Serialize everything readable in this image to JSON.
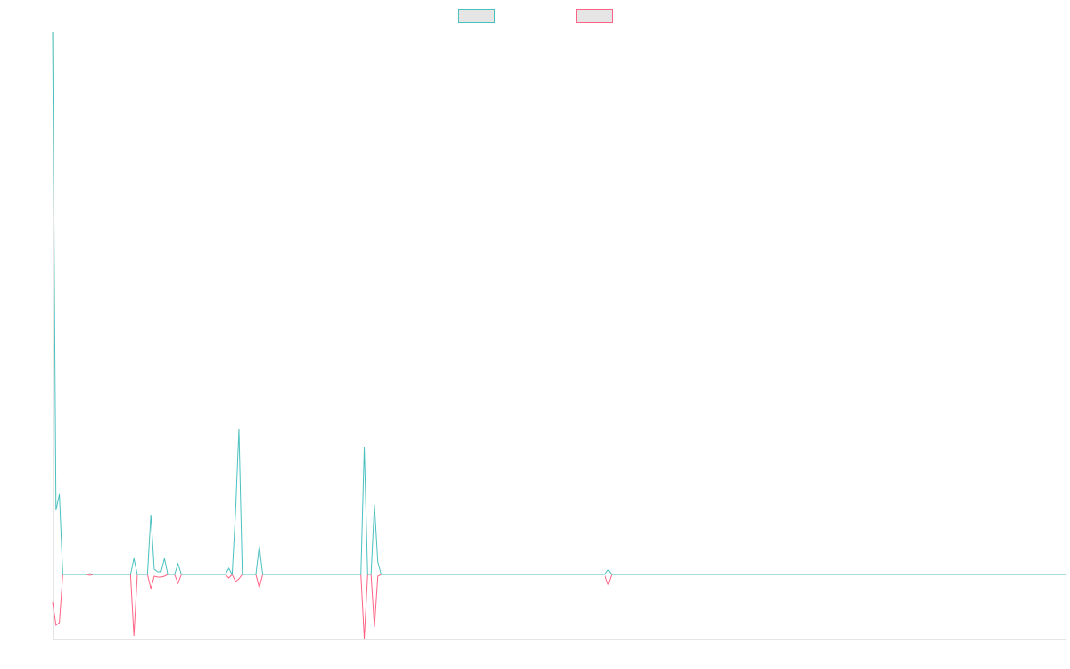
{
  "chart_data": {
    "type": "line",
    "ylim": [
      -72,
      608
    ],
    "categories": [
      null,
      null,
      null,
      null,
      null,
      null,
      null,
      null,
      null,
      null,
      null,
      null,
      null,
      null,
      null,
      null,
      null,
      null,
      null,
      null,
      null,
      null,
      null,
      null,
      null,
      null,
      null,
      null,
      null,
      null,
      null,
      null,
      null,
      null,
      null,
      null,
      null,
      null,
      null,
      null,
      null,
      null,
      null,
      null,
      null,
      null,
      null,
      null,
      null,
      null,
      null,
      null,
      null,
      null,
      null,
      null,
      null,
      null,
      null,
      null,
      null,
      null,
      null,
      null,
      null,
      null,
      null,
      null,
      null,
      null,
      null,
      null,
      null,
      null,
      null,
      null,
      null,
      null,
      null,
      null,
      null,
      null,
      null,
      null,
      null,
      null,
      null,
      null,
      null,
      null,
      null,
      null,
      null,
      null,
      null,
      null,
      null,
      null,
      null,
      null,
      null,
      null,
      null,
      null,
      null,
      null,
      null,
      null,
      null,
      null,
      null,
      null,
      null,
      null,
      null,
      null,
      null,
      null,
      null,
      null,
      null,
      null,
      null,
      null,
      null,
      null,
      null,
      null,
      null,
      null,
      null,
      null,
      null,
      null,
      null,
      null,
      null,
      null,
      null,
      null,
      null,
      null,
      null,
      null,
      null,
      null,
      null,
      null,
      null,
      null,
      null,
      null,
      null,
      null,
      null,
      null,
      null,
      null,
      null,
      null,
      null,
      null,
      null,
      null,
      null,
      null,
      null,
      null,
      null,
      null,
      null,
      null,
      null,
      null,
      null,
      null,
      null,
      null,
      null,
      null,
      null,
      null,
      null,
      null,
      null,
      null,
      null,
      null,
      null,
      null,
      null,
      null,
      null,
      null,
      null,
      null,
      null,
      null,
      null,
      null,
      null,
      null,
      null,
      null,
      null,
      null,
      null,
      null,
      null,
      null,
      null,
      null,
      null,
      null,
      null,
      null,
      null,
      null,
      null,
      null,
      null,
      null,
      null,
      null,
      null,
      null,
      null,
      null,
      null,
      null,
      null,
      null,
      null,
      null,
      null,
      null,
      null,
      null,
      null,
      null,
      null,
      null,
      null,
      null,
      null,
      null,
      null,
      null,
      null,
      null,
      null,
      null,
      null,
      null,
      null,
      null,
      null,
      null,
      null,
      null,
      null,
      null,
      null,
      null,
      null,
      null,
      null,
      null,
      null,
      null,
      null,
      null,
      null,
      null,
      null,
      null,
      null,
      null,
      null,
      null,
      null,
      null,
      null,
      null,
      null,
      null,
      null,
      null,
      null,
      null,
      null,
      null,
      null,
      null,
      null,
      null,
      null,
      null,
      null,
      null
    ],
    "series": [
      {
        "color": "#4bc0c0",
        "values": [
          608,
          72,
          90,
          0,
          0,
          0,
          0,
          0,
          0,
          0,
          0,
          1,
          0,
          0,
          0,
          0,
          0,
          0,
          0,
          0,
          0,
          0,
          0,
          0,
          18,
          0,
          0,
          0,
          0,
          67,
          6,
          3,
          3,
          18,
          0,
          0,
          0,
          12,
          0,
          0,
          0,
          0,
          0,
          0,
          0,
          0,
          0,
          0,
          0,
          0,
          0,
          0,
          7,
          0,
          70,
          163,
          0,
          0,
          0,
          0,
          0,
          32,
          0,
          0,
          0,
          0,
          0,
          0,
          0,
          0,
          0,
          0,
          0,
          0,
          0,
          0,
          0,
          0,
          0,
          0,
          0,
          0,
          0,
          0,
          0,
          0,
          0,
          0,
          0,
          0,
          0,
          0,
          143,
          0,
          0,
          78,
          14,
          0,
          0,
          0,
          0,
          0,
          0,
          0,
          0,
          0,
          0,
          0,
          0,
          0,
          0,
          0,
          0,
          0,
          0,
          0,
          0,
          0,
          0,
          0,
          0,
          0,
          0,
          0,
          0,
          0,
          0,
          0,
          0,
          0,
          0,
          0,
          0,
          0,
          0,
          0,
          0,
          0,
          0,
          0,
          0,
          0,
          0,
          0,
          0,
          0,
          0,
          0,
          0,
          0,
          0,
          0,
          0,
          0,
          0,
          0,
          0,
          0,
          0,
          0,
          0,
          0,
          0,
          0,
          5,
          0,
          0,
          0,
          0,
          0,
          0,
          0,
          0,
          0,
          0,
          0,
          0,
          0,
          0,
          0,
          0,
          0,
          0,
          0,
          0,
          0,
          0,
          0,
          0,
          0,
          0,
          0,
          0,
          0,
          0,
          0,
          0,
          0,
          0,
          0,
          0,
          0,
          0,
          0,
          0,
          0,
          0,
          0,
          0,
          0,
          0,
          0,
          0,
          0,
          0,
          0,
          0,
          0,
          0,
          0,
          0,
          0,
          0,
          0,
          0,
          0,
          0,
          0,
          0,
          0,
          0,
          0,
          0,
          0,
          0,
          0,
          0,
          0,
          0,
          0,
          0,
          0,
          0,
          0,
          0,
          0,
          0,
          0,
          0,
          0,
          0,
          0,
          0,
          0,
          0,
          0,
          0,
          0,
          0,
          0,
          0,
          0,
          0,
          0,
          0,
          0,
          0,
          0,
          0,
          0,
          0,
          0,
          0,
          0,
          0,
          0,
          0,
          0,
          0,
          0,
          0,
          0,
          0,
          0,
          0,
          0,
          0,
          0,
          0,
          0,
          0,
          0,
          0,
          0,
          0,
          0,
          0,
          0,
          0,
          0
        ]
      },
      {
        "color": "#ff6384",
        "values": [
          -31,
          -57,
          -54,
          0,
          0,
          0,
          0,
          0,
          0,
          0,
          0,
          -1,
          0,
          0,
          0,
          0,
          0,
          0,
          0,
          0,
          0,
          0,
          0,
          0,
          -69,
          0,
          0,
          0,
          0,
          -16,
          -2,
          -3,
          -3,
          -2,
          0,
          0,
          0,
          -10,
          0,
          0,
          0,
          0,
          0,
          0,
          0,
          0,
          0,
          0,
          0,
          0,
          0,
          0,
          -4,
          0,
          -8,
          -5,
          0,
          0,
          0,
          0,
          0,
          -15,
          0,
          0,
          0,
          0,
          0,
          0,
          0,
          0,
          0,
          0,
          0,
          0,
          0,
          0,
          0,
          0,
          0,
          0,
          0,
          0,
          0,
          0,
          0,
          0,
          0,
          0,
          0,
          0,
          0,
          0,
          -72,
          0,
          0,
          -59,
          -2,
          0,
          0,
          0,
          0,
          0,
          0,
          0,
          0,
          0,
          0,
          0,
          0,
          0,
          0,
          0,
          0,
          0,
          0,
          0,
          0,
          0,
          0,
          0,
          0,
          0,
          0,
          0,
          0,
          0,
          0,
          0,
          0,
          0,
          0,
          0,
          0,
          0,
          0,
          0,
          0,
          0,
          0,
          0,
          0,
          0,
          0,
          0,
          0,
          0,
          0,
          0,
          0,
          0,
          0,
          0,
          0,
          0,
          0,
          0,
          0,
          0,
          0,
          0,
          0,
          0,
          0,
          0,
          -11,
          0,
          0,
          0,
          0,
          0,
          0,
          0,
          0,
          0,
          0,
          0,
          0,
          0,
          0,
          0,
          0,
          0,
          0,
          0,
          0,
          0,
          0,
          0,
          0,
          0,
          0,
          0,
          0,
          0,
          0,
          0,
          0,
          0,
          0,
          0,
          0,
          0,
          0,
          0,
          0,
          0,
          0,
          0,
          0,
          0,
          0,
          0,
          0,
          0,
          0,
          0,
          0,
          0,
          0,
          0,
          0,
          0,
          0,
          0,
          0,
          0,
          0,
          0,
          0,
          0,
          0,
          0,
          0,
          0,
          0,
          0,
          0,
          0,
          0,
          0,
          0,
          0,
          0,
          0,
          0,
          0,
          0,
          0,
          0,
          0,
          0,
          0,
          0,
          0,
          0,
          0,
          0,
          0,
          0,
          0,
          0,
          0,
          0,
          0,
          0,
          0,
          0,
          0,
          0,
          0,
          0,
          0,
          0,
          0,
          0,
          0,
          0,
          0,
          0,
          0,
          0,
          0,
          0,
          0,
          0,
          0,
          0,
          0,
          0,
          0,
          0,
          0,
          0,
          0,
          0,
          0,
          0,
          0,
          0,
          0
        ]
      }
    ]
  }
}
